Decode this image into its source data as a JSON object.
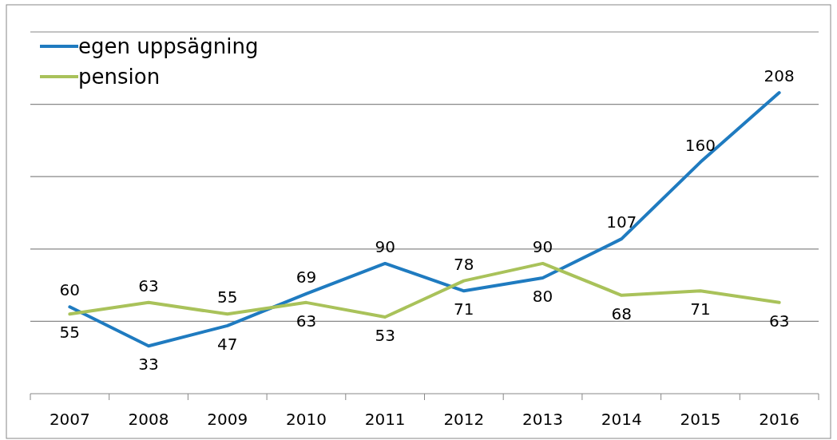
{
  "chart_data": {
    "type": "line",
    "categories": [
      "2007",
      "2008",
      "2009",
      "2010",
      "2011",
      "2012",
      "2013",
      "2014",
      "2015",
      "2016"
    ],
    "series": [
      {
        "name": "egen uppsägning",
        "color": "#1f7bc0",
        "values": [
          60,
          33,
          47,
          69,
          90,
          71,
          80,
          107,
          160,
          208
        ]
      },
      {
        "name": "pension",
        "color": "#a9c25a",
        "values": [
          55,
          63,
          55,
          63,
          53,
          78,
          90,
          68,
          71,
          63
        ]
      }
    ],
    "ylim": [
      0,
      250
    ],
    "yticks": [
      {
        "value": 0,
        "label": null
      },
      {
        "value": 50,
        "label": null
      },
      {
        "value": 100,
        "label": null
      },
      {
        "value": 150,
        "label": null
      },
      {
        "value": 200,
        "label": null
      },
      {
        "value": 250,
        "label": null
      }
    ],
    "tick_labels": "x",
    "grid": "y",
    "legend": "top left",
    "data_labels": true,
    "marker": "none",
    "line_style": "solid"
  }
}
